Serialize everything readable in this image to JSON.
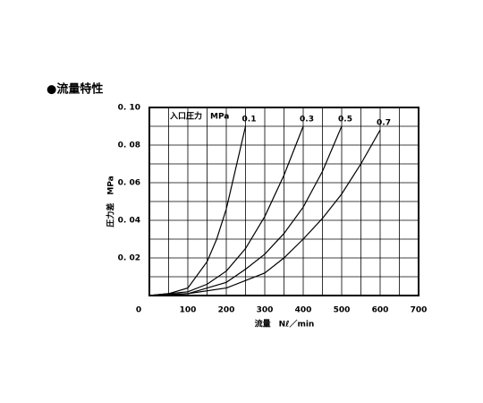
{
  "chart_data": {
    "type": "line",
    "title": "●流量特性",
    "annotation": "入口圧力　MPa",
    "xlabel": "流量　Nℓ／min",
    "ylabel": "圧力差　MPa",
    "xlim": [
      0,
      700
    ],
    "ylim": [
      0,
      0.1
    ],
    "xticks": [
      0,
      100,
      200,
      300,
      400,
      500,
      600,
      700
    ],
    "yticks": [
      {
        "value": 0.02,
        "label": "0. 02"
      },
      {
        "value": 0.04,
        "label": "0. 04"
      },
      {
        "value": 0.06,
        "label": "0. 06"
      },
      {
        "value": 0.08,
        "label": "0. 08"
      },
      {
        "value": 0.1,
        "label": "0. 10"
      }
    ],
    "minor_xticks": [
      50,
      150,
      250,
      350,
      450,
      550,
      650
    ],
    "minor_yticks": [
      0.01,
      0.03,
      0.05,
      0.07,
      0.09
    ],
    "grid": true,
    "color": "#000000",
    "series": [
      {
        "name": "0.1",
        "x": [
          0,
          50,
          100,
          150,
          175,
          200,
          225,
          250
        ],
        "values": [
          0,
          0.001,
          0.004,
          0.018,
          0.03,
          0.046,
          0.068,
          0.09
        ]
      },
      {
        "name": "0.3",
        "x": [
          0,
          100,
          150,
          200,
          250,
          300,
          350,
          400
        ],
        "values": [
          0,
          0.002,
          0.006,
          0.013,
          0.025,
          0.042,
          0.064,
          0.09
        ]
      },
      {
        "name": "0.5",
        "x": [
          0,
          100,
          200,
          250,
          300,
          350,
          400,
          450,
          500
        ],
        "values": [
          0,
          0.001,
          0.007,
          0.014,
          0.022,
          0.033,
          0.047,
          0.066,
          0.09
        ]
      },
      {
        "name": "0.7",
        "x": [
          0,
          100,
          200,
          300,
          350,
          400,
          450,
          500,
          550,
          600
        ],
        "values": [
          0,
          0.001,
          0.004,
          0.012,
          0.02,
          0.03,
          0.041,
          0.054,
          0.07,
          0.088
        ]
      }
    ]
  }
}
